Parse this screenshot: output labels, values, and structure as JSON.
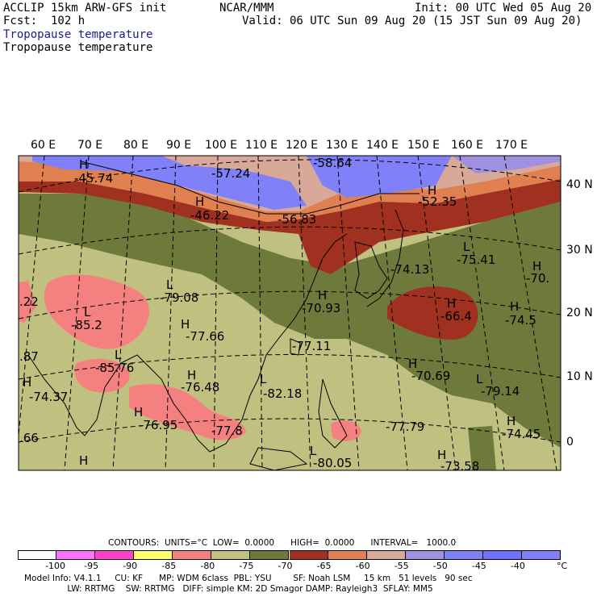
{
  "header": {
    "line1_left": "ACCLIP 15km ARW-GFS init",
    "line1_center": "NCAR/MMM",
    "line1_right": "Init: 00 UTC Wed 05 Aug 20",
    "line2_left": "Fcst:  102 h",
    "line2_right": "Valid: 06 UTC Sun 09 Aug 20 (15 JST Sun 09 Aug 20)",
    "field_name_blue": "Tropopause temperature",
    "field_name_black": "Tropopause temperature"
  },
  "lon_labels": [
    "60 E",
    "70 E",
    "80 E",
    "90 E",
    "100 E",
    "110 E",
    "120 E",
    "130 E",
    "140 E",
    "150 E",
    "160 E",
    "170 E"
  ],
  "lat_labels": [
    "40 N",
    "30 N",
    "20 N",
    "10 N",
    "0"
  ],
  "extrema": [
    {
      "mark": "H",
      "value": "-45.74"
    },
    {
      "mark": "",
      "value": "-57.24"
    },
    {
      "mark": "",
      "value": "-58.64"
    },
    {
      "mark": "H",
      "value": "-46.22"
    },
    {
      "mark": "",
      "value": "-56.83"
    },
    {
      "mark": "H",
      "value": "-52.35"
    },
    {
      "mark": "",
      "value": "-74.13"
    },
    {
      "mark": "L",
      "value": "-75.41"
    },
    {
      "mark": "H",
      "value": "-70."
    },
    {
      "mark": "L",
      "value": "-79.08"
    },
    {
      "mark": "",
      "value": ".22"
    },
    {
      "mark": "H",
      "value": "-70.93"
    },
    {
      "mark": "L",
      "value": "-85.2"
    },
    {
      "mark": "H",
      "value": "-77.66"
    },
    {
      "mark": "H",
      "value": "-66.4"
    },
    {
      "mark": "H",
      "value": "-74.5"
    },
    {
      "mark": "",
      "value": ".87"
    },
    {
      "mark": "L",
      "value": "-85.76"
    },
    {
      "mark": "",
      "value": "-77.11"
    },
    {
      "mark": "H",
      "value": "-76.48"
    },
    {
      "mark": "H",
      "value": "-70.69"
    },
    {
      "mark": "L",
      "value": "-82.18"
    },
    {
      "mark": "L",
      "value": "-79.14"
    },
    {
      "mark": "H",
      "value": "-74.37"
    },
    {
      "mark": "",
      "value": "-77.8"
    },
    {
      "mark": "",
      "value": "-77.79"
    },
    {
      "mark": "H",
      "value": "-76.95"
    },
    {
      "mark": "H",
      "value": "-74.45"
    },
    {
      "mark": "",
      "value": ".66"
    },
    {
      "mark": "H",
      "value": ""
    },
    {
      "mark": "L",
      "value": "-80.05"
    },
    {
      "mark": "H",
      "value": "-73.58"
    }
  ],
  "contours": {
    "text": "CONTOURS:  UNITS=°C  LOW=  0.0000      HIGH=  0.0000      INTERVAL=   1000.0"
  },
  "colorbar": {
    "colors": [
      "#ffffff",
      "#ff70ff",
      "#ff40c8",
      "#ffff70",
      "#f58080",
      "#c0c080",
      "#6e7a3c",
      "#a03020",
      "#e08050",
      "#d8a898",
      "#a090e0",
      "#8080f8",
      "#7070ff",
      "#8080ff"
    ],
    "ticks": [
      "-100",
      "-95",
      "-90",
      "-85",
      "-80",
      "-75",
      "-70",
      "-65",
      "-60",
      "-55",
      "-50",
      "-45",
      "-40"
    ],
    "unit": "°C"
  },
  "footer": {
    "line1": "Model Info: V4.1.1     CU: KF      MP: WDM 6class  PBL: YSU        SF: Noah LSM     15 km   51 levels   90 sec",
    "line2": "                LW: RRTMG    SW: RRTMG   DIFF: simple KM: 2D Smagor DAMP: Rayleigh3  SFLAY: MM5"
  }
}
